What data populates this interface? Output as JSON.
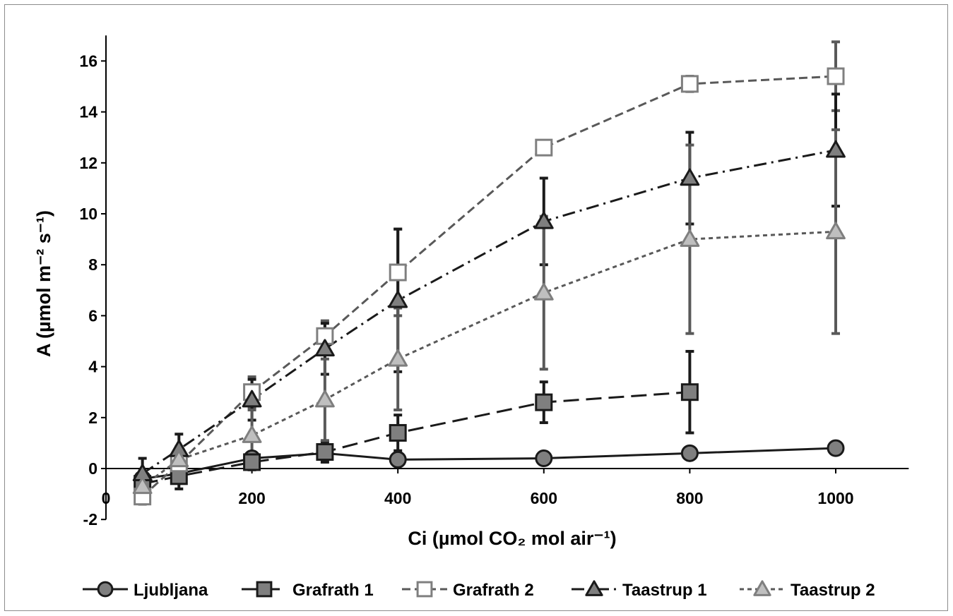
{
  "chart_data": {
    "type": "line",
    "xlabel": "Ci (µmol CO₂ mol air⁻¹)",
    "ylabel": "A (µmol m⁻² s⁻¹)",
    "xlim": [
      0,
      1100
    ],
    "ylim": [
      -2,
      17
    ],
    "x_ticks": [
      0,
      200,
      400,
      600,
      800,
      1000
    ],
    "y_ticks": [
      -2,
      0,
      2,
      4,
      6,
      8,
      10,
      12,
      14,
      16
    ],
    "grid": false,
    "legend_position": "bottom",
    "series": [
      {
        "name": "Ljubljana",
        "marker": "circle",
        "fill": "#7f7f7f",
        "stroke": "#1a1a1a",
        "line_color": "#1a1a1a",
        "dash": "solid",
        "x": [
          50,
          100,
          200,
          300,
          400,
          600,
          800,
          1000
        ],
        "y": [
          -0.4,
          -0.2,
          0.4,
          0.6,
          0.35,
          0.4,
          0.6,
          0.8
        ],
        "err": [
          0.2,
          0.2,
          0.2,
          0.2,
          0.15,
          0.15,
          0.15,
          0.25
        ]
      },
      {
        "name": "Grafrath 1",
        "marker": "square",
        "fill": "#7f7f7f",
        "stroke": "#1a1a1a",
        "line_color": "#1a1a1a",
        "dash": "long-dash",
        "x": [
          50,
          100,
          200,
          300,
          400,
          600,
          800
        ],
        "y": [
          -0.6,
          -0.3,
          0.25,
          0.65,
          1.4,
          2.6,
          3.0
        ],
        "err": [
          0.5,
          0.5,
          0.3,
          0.4,
          0.7,
          0.8,
          1.6
        ]
      },
      {
        "name": "Grafrath 2",
        "marker": "square",
        "fill": "#ffffff",
        "stroke": "#7f7f7f",
        "line_color": "#595959",
        "dash": "dash",
        "x": [
          50,
          100,
          200,
          300,
          400,
          600,
          800,
          1000
        ],
        "y": [
          -1.1,
          0.2,
          3.0,
          5.2,
          7.7,
          12.6,
          15.1,
          15.4
        ],
        "err": [
          0.3,
          0.4,
          0.6,
          0.6,
          1.7,
          0.2,
          0.3,
          1.35
        ]
      },
      {
        "name": "Taastrup 1",
        "marker": "triangle",
        "fill": "#7f7f7f",
        "stroke": "#1a1a1a",
        "line_color": "#1a1a1a",
        "dash": "dash-dot",
        "x": [
          50,
          100,
          200,
          300,
          400,
          600,
          800,
          1000
        ],
        "y": [
          -0.2,
          0.75,
          2.7,
          4.7,
          6.6,
          9.7,
          11.4,
          12.5
        ],
        "err": [
          0.6,
          0.6,
          0.8,
          1.0,
          2.8,
          1.7,
          1.8,
          2.2
        ]
      },
      {
        "name": "Taastrup 2",
        "marker": "triangle",
        "fill": "#bfbfbf",
        "stroke": "#7f7f7f",
        "line_color": "#595959",
        "dash": "dot",
        "x": [
          50,
          100,
          200,
          300,
          400,
          600,
          800,
          1000
        ],
        "y": [
          -0.7,
          0.35,
          1.3,
          2.7,
          4.3,
          6.9,
          9.0,
          9.3
        ],
        "err": [
          0.4,
          0.5,
          1.0,
          1.6,
          2.0,
          3.0,
          3.7,
          4.0
        ]
      }
    ]
  }
}
